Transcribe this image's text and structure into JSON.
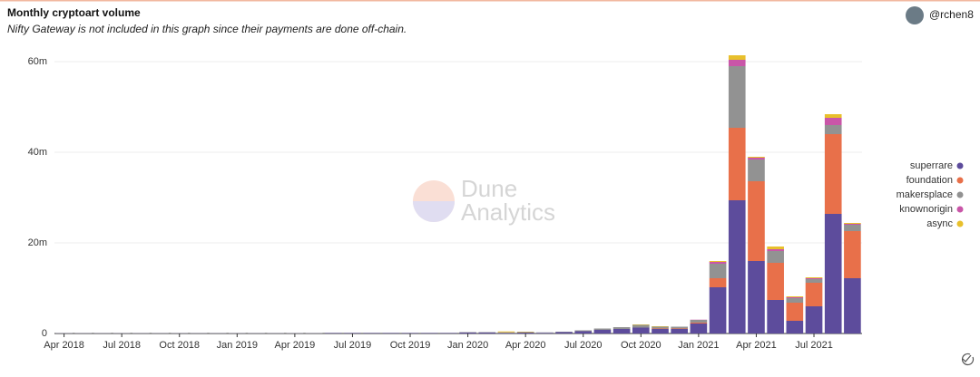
{
  "chart_data": {
    "type": "stacked_bar",
    "title": "Monthly cryptoart volume",
    "subtitle": "Nifty Gateway is not included in this graph since their payments are done off-chain.",
    "categories": [
      "Apr 2018",
      null,
      null,
      "Jul 2018",
      null,
      null,
      "Oct 2018",
      null,
      null,
      "Jan 2019",
      null,
      null,
      "Apr 2019",
      null,
      null,
      "Jul 2019",
      null,
      null,
      "Oct 2019",
      null,
      null,
      "Jan 2020",
      null,
      null,
      "Apr 2020",
      null,
      null,
      "Jul 2020",
      null,
      null,
      "Oct 2020",
      null,
      null,
      "Jan 2021",
      null,
      null,
      "Apr 2021",
      null,
      null,
      "Jul 2021",
      null,
      null
    ],
    "series": [
      {
        "name": "superrare",
        "color": "#5d4c9c",
        "values": [
          0.05,
          0.05,
          0.05,
          0.05,
          0.05,
          0.05,
          0.05,
          0.05,
          0.05,
          0.05,
          0.05,
          0.05,
          0.05,
          0.05,
          0.1,
          0.1,
          0.1,
          0.1,
          0.1,
          0.1,
          0.1,
          0.2,
          0.2,
          0.15,
          0.2,
          0.15,
          0.3,
          0.5,
          0.8,
          1.0,
          1.3,
          1.0,
          1.0,
          2.2,
          10.2,
          29.4,
          16,
          7.4,
          2.8,
          6,
          26.4,
          12.2
        ]
      },
      {
        "name": "foundation",
        "color": "#e8704a",
        "values": [
          0,
          0,
          0,
          0,
          0,
          0,
          0,
          0,
          0,
          0,
          0,
          0,
          0,
          0,
          0,
          0,
          0,
          0,
          0,
          0,
          0,
          0,
          0,
          0,
          0,
          0,
          0,
          0,
          0,
          0,
          0,
          0.1,
          0.1,
          0.2,
          2.0,
          16,
          17.6,
          8.2,
          4,
          5.2,
          17.6,
          10.4
        ]
      },
      {
        "name": "makersplace",
        "color": "#929292",
        "values": [
          0.05,
          0.05,
          0.05,
          0.05,
          0.05,
          0.05,
          0.05,
          0.05,
          0.05,
          0.05,
          0.05,
          0.05,
          0.05,
          0.05,
          0.05,
          0.05,
          0.05,
          0.05,
          0.05,
          0.05,
          0.05,
          0.1,
          0.1,
          0.1,
          0.1,
          0.1,
          0.1,
          0.2,
          0.3,
          0.4,
          0.6,
          0.4,
          0.4,
          0.6,
          3.2,
          13.6,
          4.8,
          2.6,
          1,
          0.8,
          2,
          1.4
        ]
      },
      {
        "name": "knownorigin",
        "color": "#c956a8",
        "values": [
          0,
          0,
          0,
          0,
          0,
          0,
          0,
          0,
          0,
          0,
          0,
          0,
          0,
          0,
          0,
          0,
          0,
          0,
          0,
          0,
          0,
          0,
          0,
          0,
          0,
          0,
          0,
          0,
          0,
          0,
          0,
          0,
          0,
          0.05,
          0.4,
          1.4,
          0.4,
          0.4,
          0.2,
          0.2,
          1.6,
          0.2
        ]
      },
      {
        "name": "async",
        "color": "#e8c02c",
        "values": [
          0,
          0,
          0,
          0,
          0,
          0,
          0,
          0,
          0,
          0,
          0,
          0,
          0,
          0,
          0,
          0,
          0,
          0,
          0,
          0,
          0,
          0,
          0,
          0.2,
          0.1,
          0,
          0,
          0,
          0,
          0,
          0.1,
          0.1,
          0,
          0,
          0.2,
          1.0,
          0.2,
          0.6,
          0.2,
          0.2,
          0.8,
          0.2
        ]
      }
    ],
    "ylim": [
      0,
      62
    ],
    "yticks": [
      0,
      {
        "value": 20,
        "label": "20m"
      },
      {
        "value": 40,
        "label": "40m"
      },
      {
        "value": 60,
        "label": "60m"
      }
    ],
    "grid": true,
    "legend": "right"
  },
  "header": {
    "user": "@rchen8"
  },
  "watermark": [
    "Dune",
    "Analytics"
  ]
}
